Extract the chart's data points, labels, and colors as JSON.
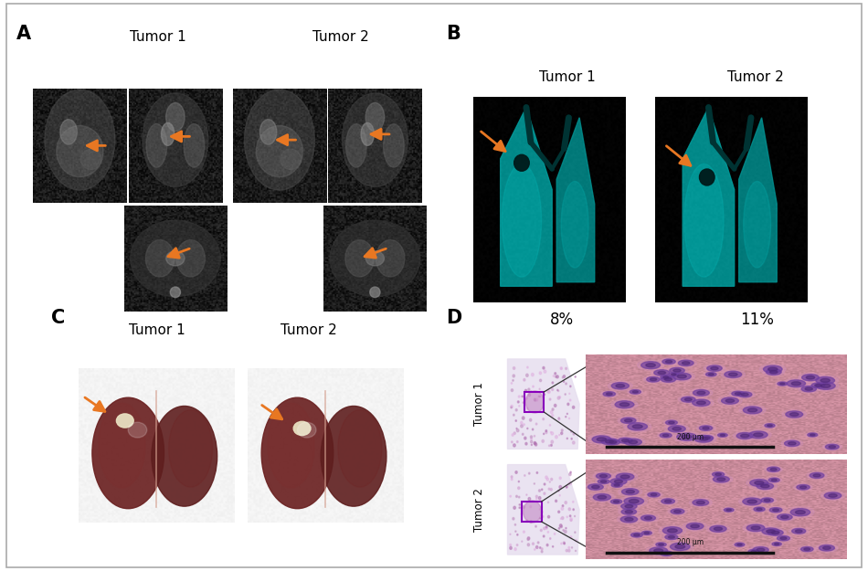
{
  "panel_labels": [
    "A",
    "B",
    "C",
    "D"
  ],
  "panel_label_fontsize": 15,
  "tumor_labels": [
    "Tumor 1",
    "Tumor 2"
  ],
  "tumor_label_fontsize": 11,
  "pct_labels": [
    "8%",
    "11%"
  ],
  "pct_fontsize": 12,
  "bg_color": "#ffffff",
  "arrow_color": "#E87722",
  "scale_bar_text": "200 μm"
}
